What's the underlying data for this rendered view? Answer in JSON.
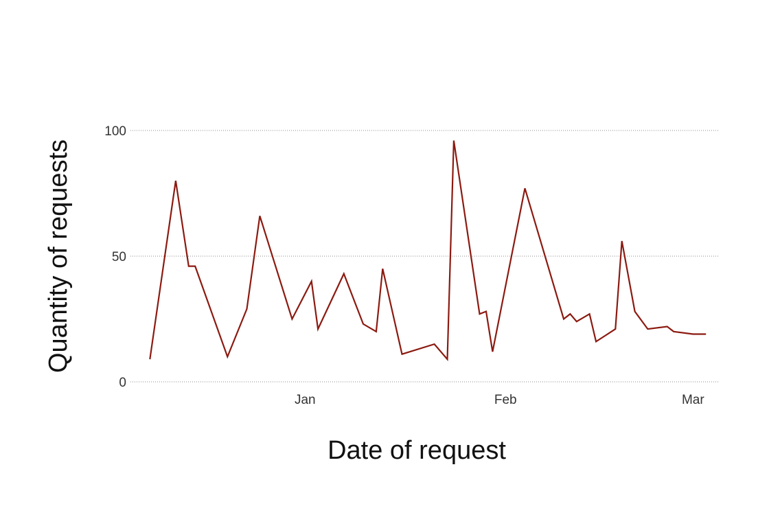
{
  "chart_data": {
    "type": "line",
    "title": "",
    "xlabel": "Date of request",
    "ylabel": "Quantity of requests",
    "x_type": "date",
    "xlim": [
      "2023-12-05",
      "2024-03-05"
    ],
    "ylim": [
      0,
      100
    ],
    "x_ticks": [
      {
        "date": "2024-01-01",
        "label": "Jan"
      },
      {
        "date": "2024-02-01",
        "label": "Feb"
      },
      {
        "date": "2024-03-01",
        "label": "Mar"
      }
    ],
    "y_ticks": [
      {
        "value": 0,
        "label": "0"
      },
      {
        "value": 50,
        "label": "50"
      },
      {
        "value": 100,
        "label": "100"
      }
    ],
    "grid": {
      "horizontal": true,
      "vertical": false
    },
    "line_color": "#8b1a10",
    "series": [
      {
        "x": [
          "2023-12-08",
          "2023-12-12",
          "2023-12-14",
          "2023-12-15",
          "2023-12-20",
          "2023-12-23",
          "2023-12-25",
          "2023-12-30",
          "2024-01-02",
          "2024-01-03",
          "2024-01-07",
          "2024-01-10",
          "2024-01-12",
          "2024-01-13",
          "2024-01-16",
          "2024-01-21",
          "2024-01-23",
          "2024-01-24",
          "2024-01-28",
          "2024-01-29",
          "2024-01-30",
          "2024-02-04",
          "2024-02-10",
          "2024-02-11",
          "2024-02-12",
          "2024-02-14",
          "2024-02-15",
          "2024-02-18",
          "2024-02-19",
          "2024-02-21",
          "2024-02-23",
          "2024-02-26",
          "2024-02-27",
          "2024-03-01",
          "2024-03-03"
        ],
        "values": [
          9,
          80,
          46,
          46,
          10,
          29,
          66,
          25,
          40,
          21,
          43,
          23,
          20,
          45,
          11,
          15,
          9,
          96,
          27,
          28,
          12,
          77,
          25,
          27,
          24,
          27,
          16,
          21,
          56,
          28,
          21,
          22,
          20,
          19,
          19
        ]
      }
    ]
  }
}
